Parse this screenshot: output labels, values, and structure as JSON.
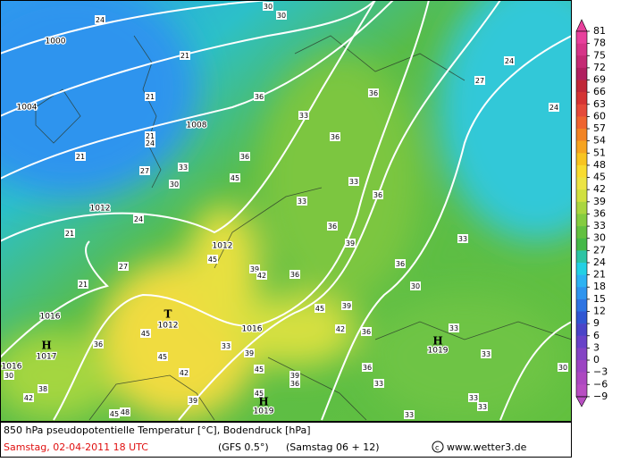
{
  "map": {
    "labels": [
      "24",
      "30",
      "30",
      "1000",
      "21",
      "24",
      "27",
      "1004",
      "21",
      "36",
      "36",
      "33",
      "1008",
      "33",
      "24",
      "21",
      "24",
      "21",
      "36",
      "27",
      "33",
      "36",
      "30",
      "45",
      "33",
      "36",
      "1012",
      "24",
      "36",
      "21",
      "1012",
      "33",
      "39",
      "45",
      "27",
      "36",
      "39",
      "21",
      "42",
      "36",
      "45",
      "30",
      "1016",
      "T",
      "1012",
      "1016",
      "39",
      "42",
      "36",
      "33",
      "45",
      "36",
      "H",
      "1017",
      "33",
      "H",
      "1019",
      "33",
      "45",
      "39",
      "1016",
      "30",
      "42",
      "36",
      "45",
      "30",
      "33",
      "39",
      "36",
      "38",
      "42",
      "39",
      "45",
      "H",
      "1019",
      "33",
      "45",
      "48",
      "33",
      "33"
    ]
  },
  "legend": {
    "levels": [
      81,
      78,
      75,
      72,
      69,
      66,
      63,
      60,
      57,
      54,
      51,
      48,
      45,
      42,
      39,
      36,
      33,
      30,
      27,
      24,
      21,
      18,
      15,
      12,
      9,
      6,
      3,
      0,
      {
        "value": -3,
        "label": "−3"
      },
      {
        "value": -6,
        "label": "−6"
      },
      {
        "value": -9,
        "label": "−9"
      }
    ],
    "colors": [
      "#e8409c",
      "#d63488",
      "#c42a74",
      "#b02060",
      "#c02838",
      "#d43434",
      "#e44a3a",
      "#ee6430",
      "#f28424",
      "#f6a420",
      "#f8c420",
      "#f8dc30",
      "#ece444",
      "#d0e040",
      "#aad640",
      "#84cc40",
      "#62c040",
      "#44b848",
      "#2cc4a4",
      "#22d0e4",
      "#2cb2f2",
      "#2e94ee",
      "#2e74e2",
      "#3056d2",
      "#4a44c8",
      "#6842c8",
      "#8444c4",
      "#9c44c2",
      "#ac48c0",
      "#b84ec2"
    ]
  },
  "footer": {
    "line1": "850 hPa pseudopotentielle Temperatur [°C], Bodendruck [hPa]",
    "date": "Samstag, 02-04-2011  18 UTC",
    "model": "(GFS 0.5°)",
    "run": "(Samstag 06 + 12)",
    "site": "www.wetter3.de"
  }
}
